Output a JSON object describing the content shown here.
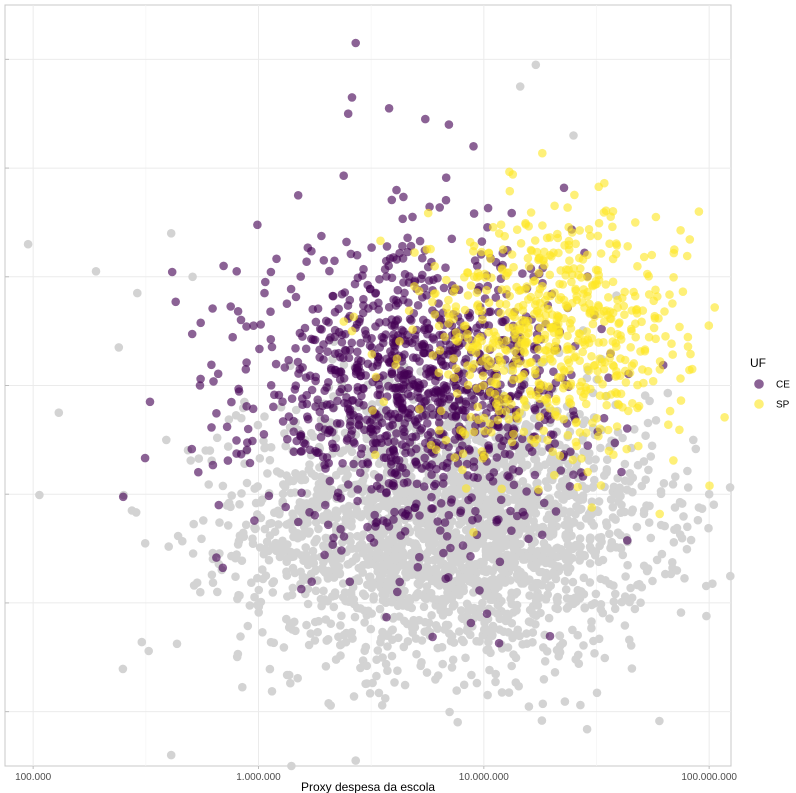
{
  "chart_data": {
    "type": "scatter",
    "title": "",
    "xlabel": "Proxy despesa da escola",
    "ylabel": "",
    "x_scale": "log",
    "xlim": [
      75000,
      125000000
    ],
    "ylim": [
      0,
      7
    ],
    "x_ticks": [
      100000,
      1000000,
      10000000,
      100000000
    ],
    "x_tick_labels": [
      "100.000",
      "1.000.000",
      "10.000.000",
      "100.000.000"
    ],
    "y_ticks": [
      0.5,
      1.5,
      2.5,
      3.5,
      4.5,
      5.5,
      6.5
    ],
    "grid": true,
    "legend": {
      "title": "UF",
      "position": "right",
      "entries": [
        {
          "label": "CE",
          "color": "#440154"
        },
        {
          "label": "SP",
          "color": "#FDE725"
        }
      ]
    },
    "background_color": "#D3D3D3",
    "series": [
      {
        "name": "CE",
        "color": "#440154",
        "center": [
          5000000,
          3.45
        ],
        "spread": [
          0.36,
          0.66
        ],
        "count": 1100,
        "points": [
          [
            2700000,
            6.65
          ],
          [
            2600000,
            6.15
          ],
          [
            3800000,
            6.05
          ],
          [
            2500000,
            6.0
          ],
          [
            5500000,
            5.95
          ],
          [
            7000000,
            5.9
          ],
          [
            9000000,
            5.7
          ],
          [
            1500000,
            5.25
          ],
          [
            800000,
            4.55
          ],
          [
            950000,
            4.05
          ],
          [
            550000,
            3.5
          ],
          [
            330000,
            3.35
          ],
          [
            700000,
            4.6
          ],
          [
            900000,
            3.1
          ]
        ]
      },
      {
        "name": "SP",
        "color": "#FDE725",
        "center": [
          20000000,
          3.95
        ],
        "spread": [
          0.3,
          0.55
        ],
        "count": 650,
        "points": [
          [
            90000000,
            5.1
          ],
          [
            58000000,
            5.05
          ],
          [
            70000000,
            4.75
          ],
          [
            47000000,
            5.0
          ],
          [
            2600000,
            4.0
          ],
          [
            9000000,
            2.15
          ],
          [
            3600000,
            3.35
          ],
          [
            12000000,
            2.55
          ]
        ]
      },
      {
        "name": "",
        "color": "#D3D3D3",
        "center": [
          7000000,
          2.2
        ],
        "spread": [
          0.45,
          0.62
        ],
        "count": 2600,
        "points": [
          [
            95000,
            4.8
          ],
          [
            190000,
            4.55
          ],
          [
            410000,
            4.9
          ],
          [
            290000,
            4.35
          ],
          [
            240000,
            3.85
          ],
          [
            130000,
            3.25
          ],
          [
            390000,
            3.0
          ],
          [
            510000,
            4.5
          ],
          [
            410000,
            0.1
          ],
          [
            1400000,
            0.0
          ],
          [
            2700000,
            0.05
          ],
          [
            17000000,
            6.45
          ],
          [
            14500000,
            6.25
          ],
          [
            25000000,
            5.8
          ],
          [
            63000000,
            2.6
          ],
          [
            80000000,
            2.2
          ],
          [
            100000000,
            2.5
          ],
          [
            85000000,
            3.0
          ]
        ]
      }
    ]
  }
}
